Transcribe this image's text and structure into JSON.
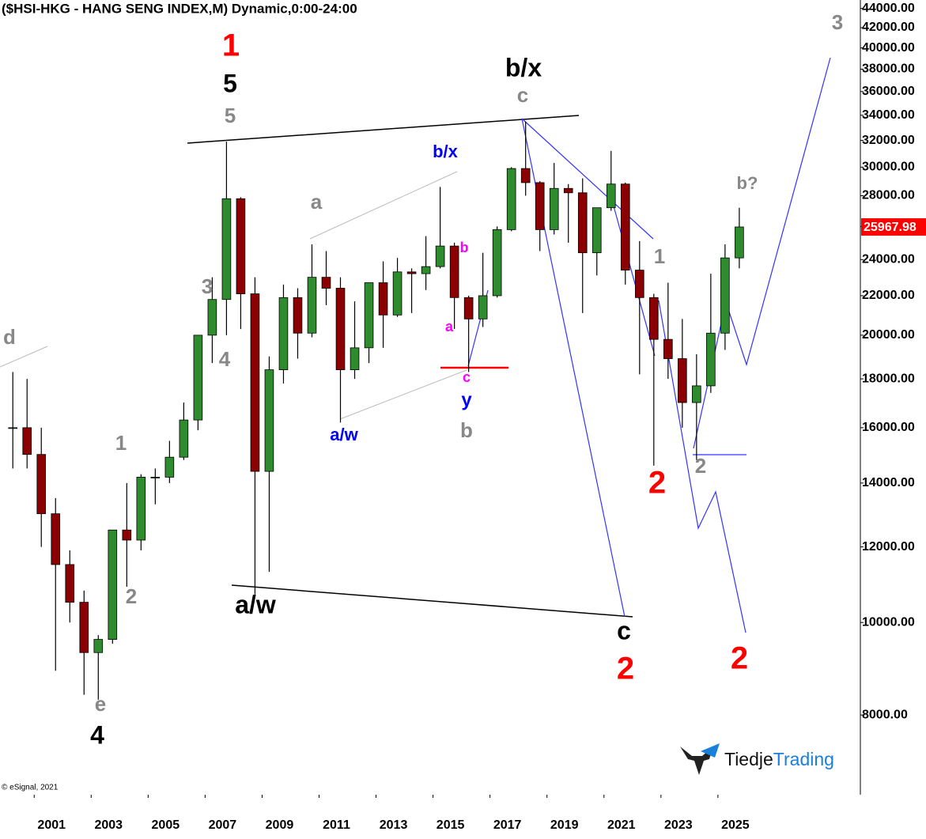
{
  "chart_data": {
    "type": "candlestick",
    "title": "($HSI-HKG - HANG SENG INDEX,M) Dynamic,0:00-24:00",
    "log_scale": true,
    "up_color": "#2e8b2e",
    "down_color": "#8b0000",
    "x": [
      2000.0,
      2000.5,
      2001.0,
      2001.5,
      2002.0,
      2002.5,
      2003.0,
      2003.5,
      2004.0,
      2004.5,
      2005.0,
      2005.5,
      2006.0,
      2006.5,
      2007.0,
      2007.5,
      2008.0,
      2008.5,
      2009.0,
      2009.5,
      2010.0,
      2010.5,
      2011.0,
      2011.5,
      2012.0,
      2012.5,
      2013.0,
      2013.5,
      2014.0,
      2014.5,
      2015.0,
      2015.5,
      2016.0,
      2016.5,
      2017.0,
      2017.5,
      2018.0,
      2018.5,
      2019.0,
      2019.5,
      2020.0,
      2020.5,
      2021.0,
      2021.5,
      2022.0,
      2022.5,
      2023.0,
      2023.5,
      2024.0,
      2024.5,
      2025.0,
      2025.5
    ],
    "open": [
      16000,
      16000,
      15000,
      13000,
      11500,
      10500,
      9300,
      9600,
      12500,
      12200,
      14200,
      14200,
      14900,
      16300,
      20000,
      21800,
      27800,
      22100,
      14400,
      18400,
      21900,
      20100,
      23000,
      22400,
      18400,
      19400,
      22700,
      21000,
      23300,
      23200,
      23600,
      24800,
      21900,
      20800,
      22000,
      25800,
      29900,
      28900,
      25800,
      28500,
      28200,
      24400,
      27200,
      28800,
      23400,
      21900,
      19800,
      18900,
      17000,
      17700,
      20100,
      24100
    ],
    "high": [
      18300,
      18000,
      16000,
      13500,
      11900,
      10800,
      9700,
      12500,
      14000,
      14300,
      14500,
      15500,
      17000,
      20000,
      23000,
      31900,
      27900,
      23000,
      19000,
      22600,
      22400,
      24900,
      24500,
      23000,
      21700,
      22700,
      23900,
      24100,
      23500,
      25400,
      28600,
      25000,
      22000,
      24400,
      26000,
      30000,
      33500,
      29000,
      30300,
      28800,
      29200,
      27000,
      31200,
      28900,
      25100,
      22100,
      22700,
      20800,
      19100,
      23200,
      24900,
      27200
    ],
    "low": [
      14500,
      14500,
      12000,
      8900,
      10000,
      8400,
      8300,
      9500,
      10900,
      11900,
      13300,
      14000,
      14800,
      15900,
      18700,
      20000,
      20300,
      10700,
      11300,
      17800,
      18900,
      19900,
      21500,
      16200,
      18000,
      18700,
      19400,
      20900,
      21100,
      22300,
      23500,
      20300,
      18300,
      20400,
      21900,
      25700,
      28000,
      24500,
      25500,
      25000,
      21100,
      23100,
      27000,
      22600,
      18200,
      14600,
      18000,
      16000,
      14800,
      17400,
      19300,
      23500
    ],
    "close": [
      16000,
      15000,
      13000,
      11500,
      10500,
      9300,
      9600,
      12500,
      12200,
      14200,
      14200,
      14900,
      16300,
      20000,
      21800,
      27800,
      22100,
      14400,
      18400,
      21900,
      20100,
      23000,
      22400,
      18400,
      19400,
      22700,
      21000,
      23300,
      23200,
      23600,
      24800,
      21900,
      20800,
      22000,
      25800,
      29900,
      28900,
      25800,
      28500,
      28200,
      24400,
      27200,
      28800,
      23400,
      21900,
      19800,
      18900,
      17000,
      17700,
      20100,
      24100,
      25967.98
    ],
    "xlim": [
      1999.8,
      2030
    ],
    "xticks": [
      2001,
      2003,
      2005,
      2007,
      2009,
      2011,
      2013,
      2015,
      2017,
      2019,
      2021,
      2023,
      2025
    ],
    "ylim": [
      6600,
      44900
    ],
    "yticks": [
      {
        "value": 8000,
        "label": "8000.00"
      },
      {
        "value": 10000,
        "label": "10000.00"
      },
      {
        "value": 12000,
        "label": "12000.00"
      },
      {
        "value": 14000,
        "label": "14000.00"
      },
      {
        "value": 16000,
        "label": "16000.00"
      },
      {
        "value": 18000,
        "label": "18000.00"
      },
      {
        "value": 20000,
        "label": "20000.00"
      },
      {
        "value": 22000,
        "label": "22000.00"
      },
      {
        "value": 24000,
        "label": "24000.00"
      },
      {
        "value": 26000,
        "label": "26000.00"
      },
      {
        "value": 28000,
        "label": "28000.00"
      },
      {
        "value": 30000,
        "label": "30000.00"
      },
      {
        "value": 32000,
        "label": "32000.00"
      },
      {
        "value": 34000,
        "label": "34000.00"
      },
      {
        "value": 36000,
        "label": "36000.00"
      },
      {
        "value": 38000,
        "label": "38000.00"
      },
      {
        "value": 40000,
        "label": "40000.00"
      },
      {
        "value": 42000,
        "label": "42000.00"
      },
      {
        "value": 44000,
        "label": "44000.00"
      }
    ],
    "annotations": [
      {
        "text": "1",
        "color": "#ff0000"
      },
      {
        "text": "5",
        "color": "#000000"
      },
      {
        "text": "5",
        "color": "#888888"
      },
      {
        "text": "3",
        "color": "#888888"
      },
      {
        "text": "4",
        "color": "#888888"
      },
      {
        "text": "1",
        "color": "#888888"
      },
      {
        "text": "2",
        "color": "#888888"
      },
      {
        "text": "e",
        "color": "#888888"
      },
      {
        "text": "4",
        "color": "#000000"
      },
      {
        "text": "d",
        "color": "#888888"
      },
      {
        "text": "a/w",
        "color": "#000000"
      },
      {
        "text": "a",
        "color": "#888888"
      },
      {
        "text": "b/x",
        "color": "#0000ff"
      },
      {
        "text": "a/w",
        "color": "#0000ff"
      },
      {
        "text": "b",
        "color": "#ff00ff"
      },
      {
        "text": "a",
        "color": "#ff00ff"
      },
      {
        "text": "c",
        "color": "#ff00ff"
      },
      {
        "text": "y",
        "color": "#0000ff"
      },
      {
        "text": "b",
        "color": "#888888"
      },
      {
        "text": "b/x",
        "color": "#000000"
      },
      {
        "text": "c",
        "color": "#888888"
      },
      {
        "text": "c",
        "color": "#000000"
      },
      {
        "text": "2",
        "color": "#ff0000"
      },
      {
        "text": "2",
        "color": "#ff0000"
      },
      {
        "text": "1",
        "color": "#888888"
      },
      {
        "text": "2",
        "color": "#888888"
      },
      {
        "text": "b?",
        "color": "#888888"
      },
      {
        "text": "3",
        "color": "#888888"
      },
      {
        "text": "2",
        "color": "#ff0000"
      }
    ],
    "copyright": "© eSignal, 2021",
    "logo": {
      "part1": "Tiedje",
      "part2": "Trading"
    }
  }
}
